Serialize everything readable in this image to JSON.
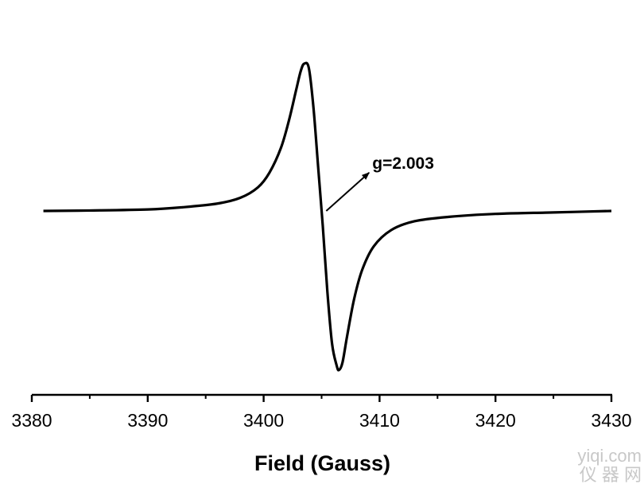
{
  "chart_data": {
    "type": "line",
    "title": "",
    "xlabel": "Field (Gauss)",
    "ylabel": "",
    "xlim": [
      3380,
      3430
    ],
    "x_ticks": [
      3380,
      3390,
      3400,
      3410,
      3420,
      3430
    ],
    "x_minor_ticks": [
      3385,
      3395,
      3405,
      3415,
      3425
    ],
    "y_axis_visible": false,
    "grid": false,
    "legend": "none",
    "line_color": "#000000",
    "series": [
      {
        "x": [
          3381,
          3385,
          3390,
          3393,
          3396,
          3398,
          3399.5,
          3400.5,
          3401.5,
          3402.2,
          3402.8,
          3403.2,
          3403.5,
          3403.9,
          3404.3,
          3404.7,
          3405.1,
          3405.5,
          3405.9,
          3406.3,
          3406.5,
          3406.8,
          3407.2,
          3407.8,
          3408.5,
          3409.5,
          3411,
          3413,
          3416,
          3420,
          3425,
          3430
        ],
        "values": [
          0.0,
          0.003,
          0.01,
          0.025,
          0.05,
          0.09,
          0.16,
          0.26,
          0.43,
          0.62,
          0.82,
          0.95,
          1.0,
          0.97,
          0.7,
          0.3,
          -0.1,
          -0.55,
          -0.9,
          -1.05,
          -1.08,
          -1.03,
          -0.85,
          -0.6,
          -0.4,
          -0.24,
          -0.13,
          -0.07,
          -0.04,
          -0.02,
          -0.01,
          0.0
        ]
      }
    ],
    "annotations": [
      {
        "text": "g=2.003",
        "arrow_from": [
          3405.4,
          0.0
        ],
        "arrow_to": [
          3409.1,
          0.26
        ]
      }
    ]
  },
  "watermark": {
    "line1": "yiqi.com",
    "line2": "仪 器 网"
  }
}
